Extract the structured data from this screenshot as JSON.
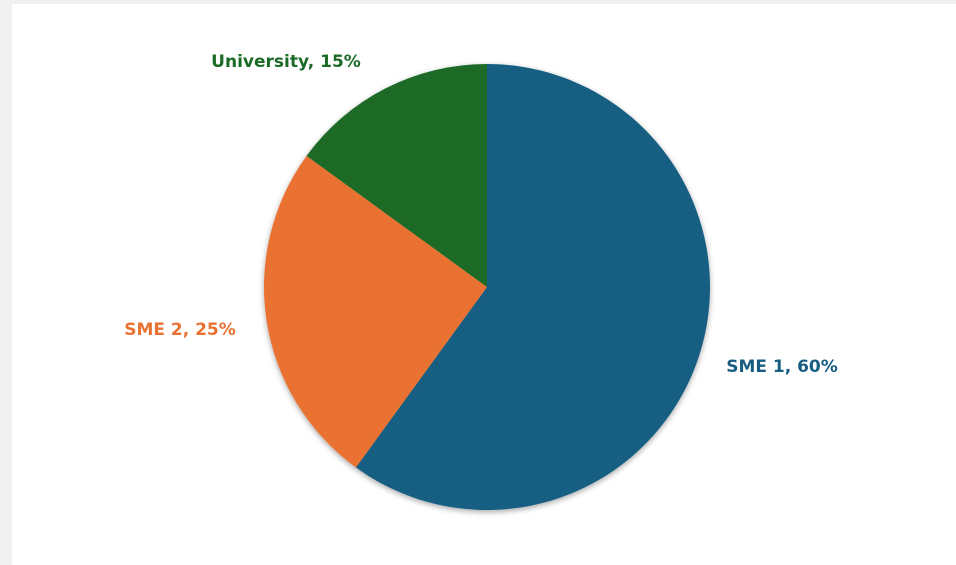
{
  "chart_data": {
    "type": "pie",
    "values": [
      60,
      25,
      15
    ],
    "value_labels": [
      "SME 1, 60%",
      "SME 2, 25%",
      "University, 15%"
    ],
    "colors": [
      "#175e82",
      "#e97132",
      "#1b6b26"
    ]
  }
}
